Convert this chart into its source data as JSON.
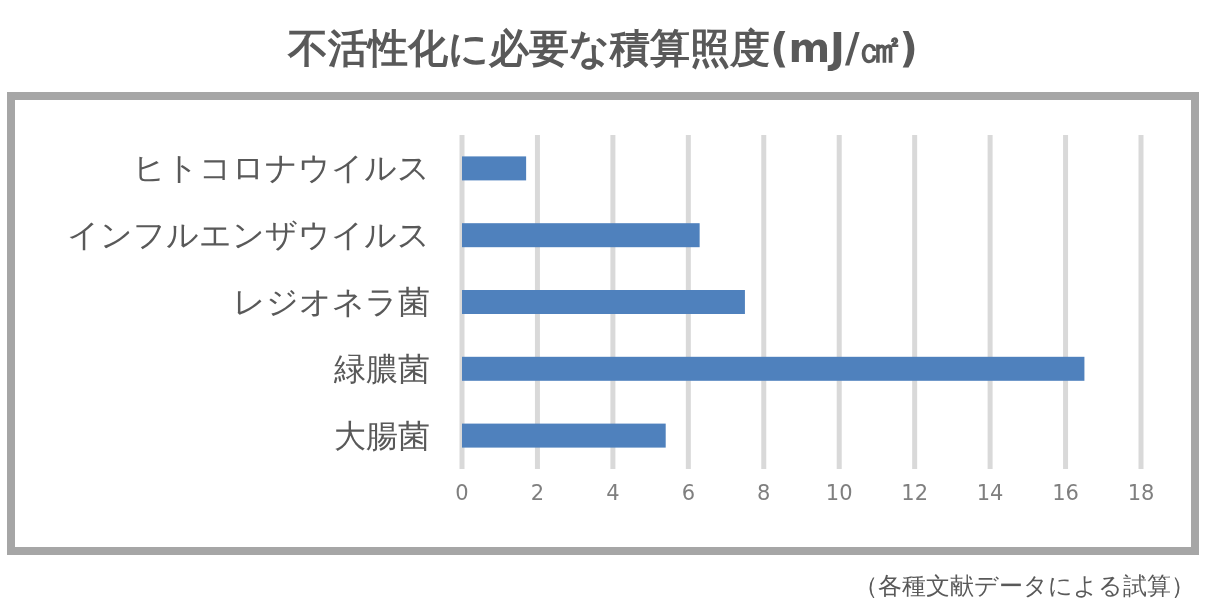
{
  "chart_data": {
    "type": "bar",
    "orientation": "horizontal",
    "title": "不活性化に必要な積算照度(mJ/㎠)",
    "categories": [
      "ヒトコロナウイルス",
      "インフルエンザウイルス",
      "レジオネラ菌",
      "緑膿菌",
      "大腸菌"
    ],
    "values": [
      1.7,
      6.3,
      7.5,
      16.5,
      5.4
    ],
    "color": "#4f81bd",
    "xlim": [
      0,
      18
    ],
    "xticks": [
      0,
      2,
      4,
      6,
      8,
      10,
      12,
      14,
      16,
      18
    ],
    "grid": "x",
    "annotations": [
      "（各種文献データによる試算）"
    ]
  }
}
